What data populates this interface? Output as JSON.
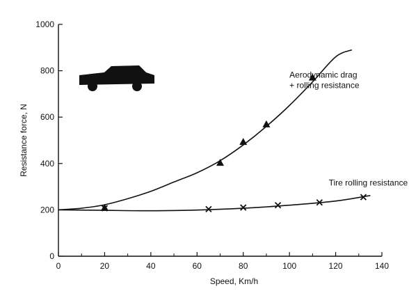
{
  "chart_data": {
    "type": "line",
    "title": "",
    "xlabel": "Speed, Km/h",
    "ylabel": "Resistance force, N",
    "xlim": [
      0,
      140
    ],
    "ylim": [
      0,
      1000
    ],
    "xticks": [
      0,
      20,
      40,
      60,
      80,
      100,
      120,
      140
    ],
    "yticks": [
      0,
      200,
      400,
      600,
      800,
      1000
    ],
    "grid": false,
    "legend": "none",
    "series": [
      {
        "marker": "triangle",
        "curve": [
          [
            0,
            200
          ],
          [
            10,
            207
          ],
          [
            20,
            222
          ],
          [
            30,
            248
          ],
          [
            40,
            280
          ],
          [
            50,
            320
          ],
          [
            60,
            360
          ],
          [
            70,
            412
          ],
          [
            80,
            480
          ],
          [
            90,
            560
          ],
          [
            100,
            650
          ],
          [
            110,
            752
          ],
          [
            120,
            860
          ],
          [
            127,
            890
          ]
        ],
        "points": [
          [
            20,
            208
          ],
          [
            70,
            402
          ],
          [
            80,
            492
          ],
          [
            90,
            568
          ],
          [
            110,
            770
          ]
        ]
      },
      {
        "marker": "x",
        "curve": [
          [
            0,
            200
          ],
          [
            20,
            198
          ],
          [
            40,
            196
          ],
          [
            60,
            199
          ],
          [
            80,
            207
          ],
          [
            100,
            220
          ],
          [
            120,
            238
          ],
          [
            135,
            262
          ]
        ],
        "points": [
          [
            20,
            207
          ],
          [
            65,
            203
          ],
          [
            80,
            210
          ],
          [
            95,
            220
          ],
          [
            113,
            232
          ],
          [
            132,
            255
          ]
        ]
      }
    ],
    "annotations": [
      {
        "text": "Aerodynamic drag",
        "x": 100,
        "y": 770
      },
      {
        "text": "+ rolling resistance",
        "x": 100,
        "y": 725
      },
      {
        "text": "Tire rolling resistance",
        "x": 117,
        "y": 305
      }
    ],
    "colors": {
      "ink": "#111111",
      "background": "#ffffff"
    },
    "icon": "car-silhouette-icon"
  }
}
